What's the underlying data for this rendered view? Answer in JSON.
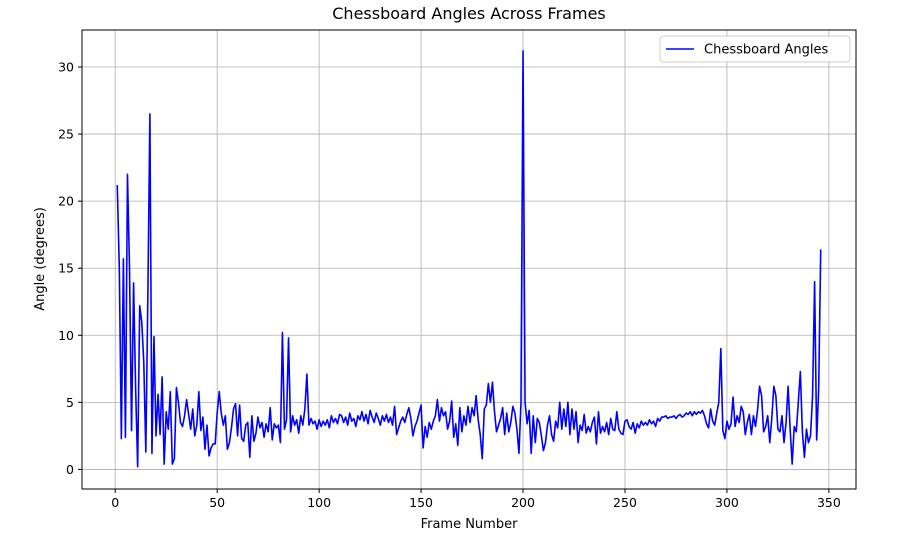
{
  "chart_data": {
    "type": "line",
    "title": "Chessboard Angles Across Frames",
    "x_label": "Frame Number",
    "y_label": "Angle (degrees)",
    "x": [
      1,
      2,
      3,
      4,
      5,
      6,
      7,
      8,
      9,
      10,
      11,
      12,
      13,
      14,
      15,
      16,
      17,
      18,
      19,
      20,
      21,
      22,
      23,
      24,
      25,
      26,
      27,
      28,
      29,
      30,
      31,
      32,
      33,
      34,
      35,
      36,
      37,
      38,
      39,
      40,
      41,
      42,
      43,
      44,
      45,
      46,
      47,
      48,
      49,
      50,
      51,
      52,
      53,
      54,
      55,
      56,
      57,
      58,
      59,
      60,
      61,
      62,
      63,
      64,
      65,
      66,
      67,
      68,
      69,
      70,
      71,
      72,
      73,
      74,
      75,
      76,
      77,
      78,
      79,
      80,
      81,
      82,
      83,
      84,
      85,
      86,
      87,
      88,
      89,
      90,
      91,
      92,
      93,
      94,
      95,
      96,
      97,
      98,
      99,
      100,
      101,
      102,
      103,
      104,
      105,
      106,
      107,
      108,
      109,
      110,
      111,
      112,
      113,
      114,
      115,
      116,
      117,
      118,
      119,
      120,
      121,
      122,
      123,
      124,
      125,
      126,
      127,
      128,
      129,
      130,
      131,
      132,
      133,
      134,
      135,
      136,
      137,
      138,
      139,
      140,
      141,
      142,
      143,
      144,
      145,
      146,
      147,
      148,
      149,
      150,
      151,
      152,
      153,
      154,
      155,
      156,
      157,
      158,
      159,
      160,
      161,
      162,
      163,
      164,
      165,
      166,
      167,
      168,
      169,
      170,
      171,
      172,
      173,
      174,
      175,
      176,
      177,
      178,
      179,
      180,
      181,
      182,
      183,
      184,
      185,
      186,
      187,
      188,
      189,
      190,
      191,
      192,
      193,
      194,
      195,
      196,
      197,
      198,
      199,
      200,
      201,
      202,
      203,
      204,
      205,
      206,
      207,
      208,
      209,
      210,
      211,
      212,
      213,
      214,
      215,
      216,
      217,
      218,
      219,
      220,
      221,
      222,
      223,
      224,
      225,
      226,
      227,
      228,
      229,
      230,
      231,
      232,
      233,
      234,
      235,
      236,
      237,
      238,
      239,
      240,
      241,
      242,
      243,
      244,
      245,
      246,
      247,
      248,
      249,
      250,
      251,
      252,
      253,
      254,
      255,
      256,
      257,
      258,
      259,
      260,
      261,
      262,
      263,
      264,
      265,
      266,
      267,
      268,
      269,
      270,
      271,
      272,
      273,
      274,
      275,
      276,
      277,
      278,
      279,
      280,
      281,
      282,
      283,
      284,
      285,
      286,
      287,
      288,
      289,
      290,
      291,
      292,
      293,
      294,
      295,
      296,
      297,
      298,
      299,
      300,
      301,
      302,
      303,
      304,
      305,
      306,
      307,
      308,
      309,
      310,
      311,
      312,
      313,
      314,
      315,
      316,
      317,
      318,
      319,
      320,
      321,
      322,
      323,
      324,
      325,
      326,
      327,
      328,
      329,
      330,
      331,
      332,
      333,
      334,
      335,
      336,
      337,
      338,
      339,
      340,
      341,
      342,
      343,
      344,
      345,
      346
    ],
    "series": [
      {
        "name": "Chessboard Angles",
        "color": "#0000ff",
        "values": [
          21.2,
          15.0,
          2.3,
          15.7,
          2.4,
          22.0,
          15.0,
          2.9,
          13.9,
          6.0,
          0.2,
          12.2,
          11.0,
          8.0,
          1.3,
          13.0,
          26.5,
          1.2,
          9.9,
          2.5,
          5.6,
          2.6,
          6.9,
          0.4,
          4.3,
          3.0,
          5.8,
          0.4,
          0.8,
          6.1,
          5.0,
          3.5,
          3.2,
          4.0,
          5.2,
          4.1,
          3.0,
          4.5,
          2.5,
          3.3,
          5.8,
          2.9,
          3.9,
          1.5,
          3.3,
          1.0,
          1.6,
          1.9,
          1.9,
          4.2,
          5.8,
          4.2,
          3.3,
          4.0,
          1.5,
          2.0,
          3.1,
          4.5,
          4.9,
          2.5,
          4.8,
          2.3,
          2.1,
          3.3,
          3.5,
          0.9,
          4.0,
          2.1,
          2.7,
          3.9,
          3.1,
          3.5,
          2.4,
          3.4,
          2.8,
          4.6,
          2.2,
          3.4,
          3.1,
          3.3,
          2.0,
          10.2,
          3.0,
          3.7,
          9.8,
          2.8,
          4.0,
          3.3,
          3.7,
          2.7,
          4.0,
          3.3,
          4.5,
          7.1,
          3.3,
          3.8,
          3.4,
          3.6,
          3.0,
          3.7,
          3.2,
          3.6,
          3.3,
          3.7,
          3.1,
          4.0,
          3.5,
          3.8,
          3.4,
          4.1,
          4.0,
          3.5,
          3.9,
          3.3,
          4.2,
          3.6,
          3.8,
          3.2,
          4.0,
          3.7,
          4.3,
          3.6,
          4.1,
          3.4,
          4.4,
          3.9,
          3.5,
          4.2,
          3.8,
          3.3,
          4.0,
          3.6,
          4.1,
          3.5,
          3.9,
          3.3,
          4.7,
          2.6,
          3.1,
          3.6,
          3.9,
          3.5,
          4.1,
          4.6,
          3.8,
          2.5,
          3.2,
          3.6,
          4.2,
          4.8,
          1.6,
          3.2,
          2.4,
          3.5,
          3.0,
          3.6,
          4.0,
          5.2,
          3.6,
          4.6,
          4.0,
          4.3,
          3.0,
          3.6,
          5.1,
          2.4,
          3.4,
          1.8,
          4.6,
          2.8,
          4.0,
          3.3,
          4.7,
          3.5,
          4.6,
          4.0,
          5.5,
          3.7,
          2.6,
          0.8,
          4.5,
          4.8,
          6.4,
          5.0,
          6.5,
          4.3,
          2.8,
          3.3,
          3.8,
          4.6,
          2.6,
          4.2,
          2.8,
          3.5,
          4.7,
          4.2,
          3.0,
          1.2,
          5.0,
          31.2,
          5.0,
          3.4,
          4.4,
          1.2,
          4.0,
          2.0,
          3.8,
          3.5,
          2.5,
          1.4,
          2.0,
          3.3,
          4.0,
          2.6,
          2.1,
          3.6,
          3.1,
          5.0,
          3.0,
          4.5,
          3.2,
          5.0,
          2.6,
          4.5,
          3.0,
          4.3,
          2.0,
          3.3,
          2.9,
          4.1,
          2.7,
          3.2,
          2.8,
          3.5,
          3.9,
          1.9,
          4.3,
          2.7,
          3.2,
          2.8,
          3.5,
          2.6,
          3.8,
          3.0,
          2.9,
          4.3,
          3.0,
          2.7,
          2.6,
          3.6,
          3.7,
          3.2,
          3.0,
          3.5,
          2.7,
          3.4,
          3.1,
          3.6,
          3.3,
          3.5,
          3.3,
          3.7,
          3.4,
          3.6,
          3.2,
          3.8,
          3.6,
          3.9,
          3.9,
          4.0,
          3.8,
          3.9,
          3.9,
          4.0,
          3.8,
          4.0,
          4.1,
          3.9,
          4.0,
          4.2,
          4.1,
          4.3,
          4.0,
          4.3,
          4.1,
          4.3,
          4.2,
          4.4,
          4.0,
          3.4,
          3.1,
          4.5,
          3.6,
          3.3,
          4.2,
          5.0,
          9.0,
          2.9,
          2.3,
          3.6,
          3.0,
          3.4,
          5.4,
          3.2,
          4.0,
          3.5,
          4.7,
          4.3,
          2.6,
          3.5,
          4.1,
          2.6,
          4.0,
          3.2,
          4.4,
          6.2,
          5.5,
          2.8,
          3.2,
          4.0,
          2.0,
          3.8,
          6.2,
          5.5,
          3.0,
          2.8,
          4.0,
          2.0,
          3.5,
          6.2,
          3.0,
          0.4,
          3.2,
          2.8,
          5.0,
          7.3,
          2.8,
          0.9,
          3.0,
          2.0,
          2.5,
          5.5,
          14.0,
          2.2,
          6.0,
          16.4
        ]
      }
    ],
    "xlim": [
      -16.3,
      363.3
    ],
    "ylim": [
      -1.46,
      32.76
    ],
    "xticks": [
      0,
      50,
      100,
      150,
      200,
      250,
      300,
      350
    ],
    "yticks": [
      0,
      5,
      10,
      15,
      20,
      25,
      30
    ],
    "grid": true,
    "legend": "upper right"
  }
}
